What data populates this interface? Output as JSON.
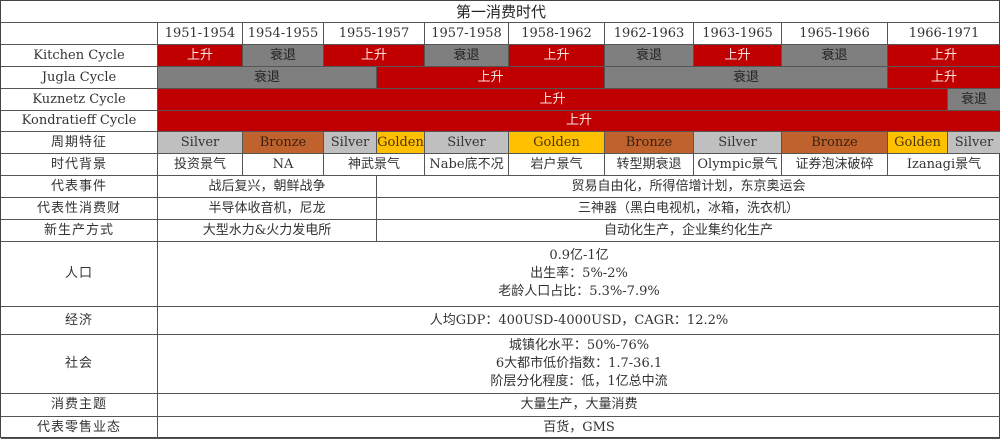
{
  "title": "第一消费时代",
  "years": [
    "1951-1954",
    "1954-1955",
    "1955-1957",
    "1957-1958",
    "1958-1962",
    "1962-1963",
    "1963-1965",
    "1965-1966",
    "1966-1971"
  ],
  "row_labels": [
    "Kitchen Cycle",
    "Jugla Cycle",
    "Kuznetz Cycle",
    "Kondratieff Cycle",
    "周期特征",
    "时代背景",
    "代表事件",
    "代表性消费财",
    "新生产方式",
    "人口",
    "经济",
    "社会",
    "消费主题",
    "代表零售业态"
  ],
  "kitchen": [
    "上升",
    "衰退",
    "上升",
    "衰退",
    "上升",
    "衰退",
    "上升",
    "衰退",
    "上升"
  ],
  "jugla": [
    "衰退",
    "上升",
    "衰退",
    "上升"
  ],
  "kuznetz": [
    "上升",
    "衰退"
  ],
  "kondratieff": [
    "上升"
  ],
  "phases": [
    "Silver",
    "Bronze",
    "Silver",
    "Golden",
    "Silver",
    "Golden",
    "Bronze",
    "Silver",
    "Bronze",
    "Golden",
    "Silver"
  ],
  "eras": [
    "投资景气",
    "NA",
    "神武景气",
    "Nabe底不况",
    "岩户景气",
    "转型期衰退",
    "Olympic景气",
    "证券泡沫破碎",
    "Izanagi景气"
  ],
  "events": [
    "战后复兴，朝鲜战争",
    "贸易自由化，所得倍增计划，东京奥运会"
  ],
  "goods": [
    "半导体收音机，尼龙",
    "三神器（黑白电视机，冰箱，洗衣机）"
  ],
  "production": [
    "大型水力&火力发电所",
    "自动化生产，企业集约化生产"
  ],
  "population": "0.9亿-1亿\n出生率：5%-2%\n老龄人口占比：5.3%-7.9%",
  "economy": "人均GDP：400USD-4000USD，CAGR：12.2%",
  "society": "城镇化水平：50%-76%\n6大都市低价指数：1.7-36.1\n阶层分化程度：低，1亿总中流",
  "consumption_theme": "大量生产，大量消费",
  "retail_format": "百货，GMS",
  "colors": {
    "up": "#c00000",
    "down": "#7f7f7f",
    "Silver": "#bfbfbf",
    "Bronze": "#c0622d",
    "Golden": "#ffc000"
  }
}
